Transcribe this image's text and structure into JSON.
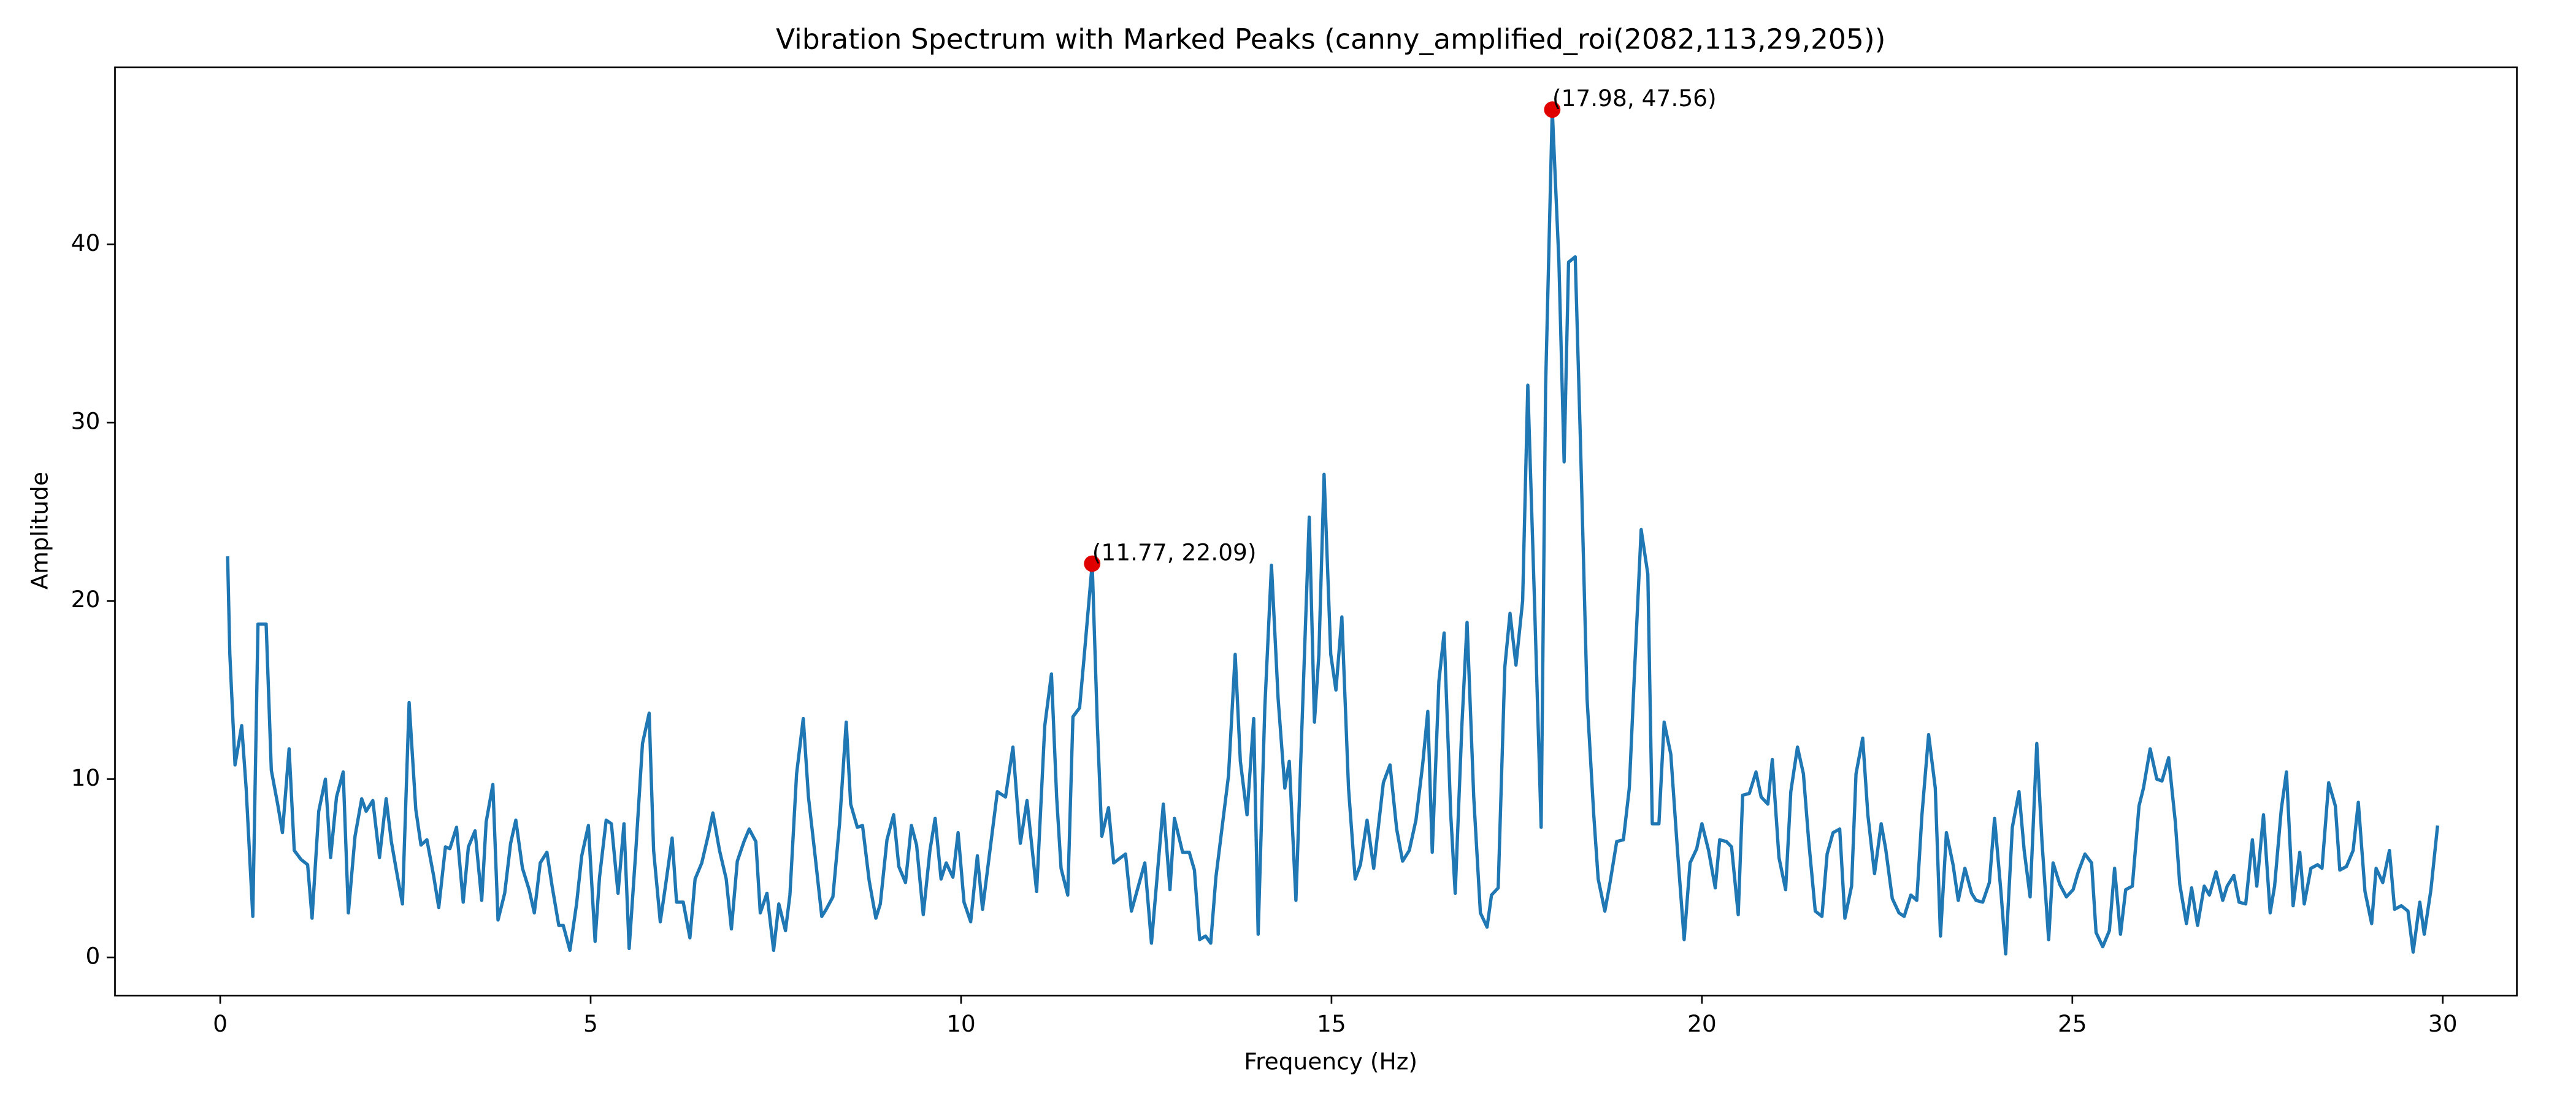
{
  "chart_data": {
    "type": "line",
    "title": "Vibration Spectrum with Marked Peaks (canny_amplified_roi(2082,113,29,205))",
    "x_label": "Frequency (Hz)",
    "y_label": "Amplitude",
    "xlim": [
      -1.42,
      31.0
    ],
    "ylim": [
      -2.14,
      49.93
    ],
    "xticks": [
      0,
      5,
      10,
      15,
      20,
      25,
      30
    ],
    "yticks": [
      0,
      10,
      20,
      30,
      40
    ],
    "grid": false,
    "series": [
      {
        "name": "Amplitude",
        "color": "#1f77b4",
        "x": [
          0.1,
          0.13,
          0.2,
          0.29,
          0.35,
          0.44,
          0.51,
          0.62,
          0.69,
          0.78,
          0.84,
          0.93,
          1.0,
          1.09,
          1.18,
          1.24,
          1.33,
          1.42,
          1.49,
          1.57,
          1.66,
          1.73,
          1.82,
          1.91,
          1.97,
          2.06,
          2.15,
          2.24,
          2.31,
          2.39,
          2.46,
          2.55,
          2.64,
          2.71,
          2.79,
          2.88,
          2.95,
          3.04,
          3.1,
          3.19,
          3.28,
          3.35,
          3.44,
          3.53,
          3.59,
          3.68,
          3.75,
          3.84,
          3.92,
          3.99,
          4.08,
          4.17,
          4.24,
          4.32,
          4.41,
          4.48,
          4.57,
          4.63,
          4.72,
          4.81,
          4.88,
          4.97,
          5.06,
          5.12,
          5.21,
          5.28,
          5.37,
          5.45,
          5.52,
          5.61,
          5.7,
          5.79,
          5.85,
          5.94,
          6.01,
          6.1,
          6.16,
          6.25,
          6.34,
          6.41,
          6.5,
          6.59,
          6.65,
          6.74,
          6.83,
          6.9,
          6.98,
          7.07,
          7.14,
          7.23,
          7.29,
          7.38,
          7.47,
          7.54,
          7.63,
          7.69,
          7.78,
          7.87,
          7.94,
          8.03,
          8.12,
          8.18,
          8.27,
          8.36,
          8.45,
          8.51,
          8.6,
          8.67,
          8.76,
          8.85,
          8.91,
          9.0,
          9.09,
          9.16,
          9.25,
          9.33,
          9.4,
          9.49,
          9.58,
          9.65,
          9.73,
          9.8,
          9.89,
          9.96,
          10.04,
          10.13,
          10.22,
          10.29,
          10.49,
          10.6,
          10.7,
          10.8,
          10.89,
          11.02,
          11.13,
          11.22,
          11.29,
          11.35,
          11.44,
          11.51,
          11.6,
          11.66,
          11.77,
          11.84,
          11.9,
          11.99,
          12.06,
          12.22,
          12.3,
          12.48,
          12.57,
          12.73,
          12.82,
          12.88,
          12.99,
          13.08,
          13.15,
          13.22,
          13.3,
          13.37,
          13.44,
          13.61,
          13.7,
          13.77,
          13.86,
          13.95,
          14.01,
          14.1,
          14.19,
          14.28,
          14.37,
          14.43,
          14.52,
          14.61,
          14.7,
          14.77,
          14.83,
          14.9,
          14.99,
          15.06,
          15.14,
          15.23,
          15.32,
          15.39,
          15.48,
          15.57,
          15.7,
          15.79,
          15.88,
          15.96,
          16.05,
          16.14,
          16.23,
          16.3,
          16.36,
          16.45,
          16.52,
          16.61,
          16.67,
          16.76,
          16.83,
          16.92,
          17.01,
          17.1,
          17.16,
          17.25,
          17.34,
          17.41,
          17.49,
          17.58,
          17.65,
          17.74,
          17.83,
          17.89,
          17.98,
          18.07,
          18.14,
          18.2,
          18.29,
          18.36,
          18.45,
          18.54,
          18.6,
          18.69,
          18.76,
          18.85,
          18.94,
          19.02,
          19.09,
          19.18,
          19.27,
          19.33,
          19.42,
          19.49,
          19.58,
          19.67,
          19.76,
          19.84,
          19.93,
          20.0,
          20.09,
          20.18,
          20.24,
          20.33,
          20.4,
          20.49,
          20.55,
          20.64,
          20.73,
          20.8,
          20.89,
          20.95,
          21.04,
          21.13,
          21.2,
          21.29,
          21.37,
          21.44,
          21.53,
          21.62,
          21.69,
          21.77,
          21.86,
          21.93,
          22.02,
          22.08,
          22.17,
          22.24,
          22.33,
          22.42,
          22.48,
          22.57,
          22.66,
          22.73,
          22.82,
          22.9,
          22.97,
          23.06,
          23.15,
          23.22,
          23.3,
          23.39,
          23.46,
          23.55,
          23.64,
          23.7,
          23.79,
          23.88,
          23.95,
          24.04,
          24.1,
          24.19,
          24.28,
          24.35,
          24.43,
          24.52,
          24.59,
          24.68,
          24.74,
          24.83,
          24.92,
          25.01,
          25.08,
          25.17,
          25.26,
          25.32,
          25.41,
          25.5,
          25.57,
          25.65,
          25.72,
          25.81,
          25.9,
          25.96,
          26.05,
          26.14,
          26.21,
          26.3,
          26.39,
          26.45,
          26.54,
          26.61,
          26.69,
          26.78,
          26.85,
          26.94,
          27.03,
          27.09,
          27.18,
          27.25,
          27.34,
          27.43,
          27.49,
          27.58,
          27.67,
          27.73,
          27.82,
          27.89,
          27.98,
          28.07,
          28.13,
          28.22,
          28.31,
          28.37,
          28.46,
          28.55,
          28.61,
          28.7,
          28.79,
          28.86,
          28.95,
          29.04,
          29.1,
          29.19,
          29.28,
          29.35,
          29.44,
          29.53,
          29.6,
          29.69,
          29.75,
          29.84,
          29.93
        ],
        "values": [
          22.5,
          17,
          10.8,
          13,
          9.5,
          2.3,
          18.7,
          18.7,
          10.5,
          8.5,
          7,
          11.7,
          6,
          5.5,
          5.2,
          2.2,
          8.2,
          10,
          5.6,
          9,
          10.4,
          2.5,
          6.8,
          8.9,
          8.2,
          8.8,
          5.6,
          8.9,
          6.5,
          4.6,
          3,
          14.3,
          8.3,
          6.3,
          6.6,
          4.6,
          2.8,
          6.2,
          6.1,
          7.3,
          3.1,
          6.2,
          7.1,
          3.2,
          7.6,
          9.7,
          2.1,
          3.6,
          6.4,
          7.7,
          5,
          3.8,
          2.5,
          5.3,
          5.9,
          4,
          1.8,
          1.8,
          0.4,
          3,
          5.7,
          7.4,
          0.9,
          4.5,
          7.7,
          7.5,
          3.6,
          7.5,
          0.5,
          6,
          12,
          13.7,
          6,
          2,
          4,
          6.7,
          3.1,
          3.1,
          1.1,
          4.4,
          5.3,
          6.9,
          8.1,
          6,
          4.4,
          1.6,
          5.4,
          6.5,
          7.2,
          6.5,
          2.5,
          3.6,
          0.4,
          3,
          1.5,
          3.5,
          10.3,
          13.4,
          9,
          5.7,
          2.3,
          2.7,
          3.4,
          7.5,
          13.2,
          8.6,
          7.3,
          7.4,
          4.3,
          2.2,
          3,
          6.6,
          8,
          5.1,
          4.2,
          7.4,
          6.3,
          2.4,
          6,
          7.8,
          4.4,
          5.3,
          4.5,
          7,
          3.1,
          2,
          5.7,
          2.7,
          9.3,
          9,
          11.8,
          6.4,
          8.8,
          3.7,
          13,
          15.9,
          9,
          5,
          3.5,
          13.5,
          14,
          16.8,
          22.09,
          13,
          6.8,
          8.4,
          5.3,
          5.8,
          2.6,
          5.3,
          0.8,
          8.6,
          3.8,
          7.8,
          5.9,
          5.9,
          4.9,
          1,
          1.2,
          0.8,
          4.5,
          10.2,
          17,
          11,
          8,
          13.4,
          1.3,
          14,
          22,
          14.5,
          9.5,
          11,
          3.2,
          14,
          24.7,
          13.2,
          17,
          27.1,
          17,
          15,
          19.1,
          9.5,
          4.4,
          5.2,
          7.7,
          5,
          9.8,
          10.8,
          7.2,
          5.4,
          6,
          7.7,
          10.8,
          13.8,
          5.9,
          15.5,
          18.2,
          8,
          3.6,
          13,
          18.8,
          9,
          2.5,
          1.7,
          3.5,
          3.9,
          16.3,
          19.3,
          16.4,
          20,
          32.1,
          20,
          7.3,
          32,
          47.56,
          39,
          27.8,
          39,
          39.3,
          29,
          14.5,
          8,
          4.4,
          2.6,
          4.2,
          6.5,
          6.6,
          9.5,
          16,
          24,
          21.5,
          7.5,
          7.5,
          13.2,
          11.4,
          6,
          1,
          5.3,
          6.1,
          7.5,
          6,
          3.9,
          6.6,
          6.5,
          6.2,
          2.4,
          9.1,
          9.2,
          10.4,
          9,
          8.6,
          11.1,
          5.6,
          3.8,
          9.3,
          11.8,
          10.3,
          6.6,
          2.6,
          2.3,
          5.8,
          7,
          7.2,
          2.2,
          4,
          10.3,
          12.3,
          8,
          4.7,
          7.5,
          6.1,
          3.3,
          2.5,
          2.3,
          3.5,
          3.2,
          8,
          12.5,
          9.5,
          1.2,
          7,
          5.2,
          3.2,
          5,
          3.6,
          3.2,
          3.1,
          4.2,
          7.8,
          3.5,
          0.2,
          7.3,
          9.3,
          6,
          3.4,
          12,
          6.5,
          1,
          5.3,
          4.1,
          3.4,
          3.8,
          4.8,
          5.8,
          5.3,
          1.4,
          0.6,
          1.5,
          5,
          1.3,
          3.8,
          4,
          8.5,
          9.5,
          11.7,
          10,
          9.9,
          11.2,
          7.6,
          4.1,
          1.9,
          3.9,
          1.8,
          4,
          3.5,
          4.8,
          3.2,
          4,
          4.6,
          3.1,
          3,
          6.6,
          4,
          8,
          2.5,
          4,
          8.3,
          10.4,
          2.9,
          5.9,
          3,
          5,
          5.2,
          5,
          9.8,
          8.5,
          4.9,
          5.1,
          6,
          8.7,
          3.7,
          1.9,
          5,
          4.2,
          6,
          2.7,
          2.9,
          2.6,
          0.3,
          3.1,
          1.3,
          3.8,
          7.4
        ]
      }
    ],
    "peaks": [
      {
        "x": 11.77,
        "y": 22.09,
        "label": "(11.77, 22.09)",
        "color": "#e00000"
      },
      {
        "x": 17.98,
        "y": 47.56,
        "label": "(17.98, 47.56)",
        "color": "#e00000"
      }
    ]
  }
}
